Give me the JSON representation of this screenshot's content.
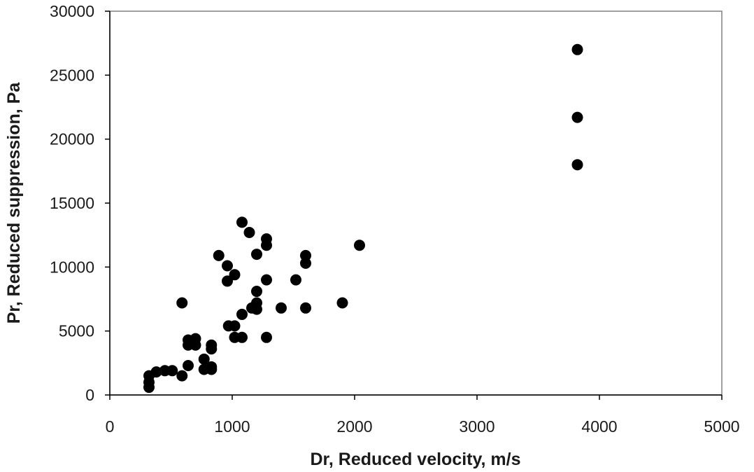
{
  "chart_data": {
    "type": "scatter",
    "title": "",
    "xlabel": "Dr, Reduced velocity, m/s",
    "ylabel": "Pr, Reduced suppression, Pa",
    "xlim": [
      0,
      5000
    ],
    "ylim": [
      0,
      30000
    ],
    "x_ticks": [
      "0",
      "1000",
      "2000",
      "3000",
      "4000",
      "5000"
    ],
    "y_ticks": [
      "0",
      "5000",
      "10000",
      "15000",
      "20000",
      "25000",
      "30000"
    ],
    "grid": false,
    "legend": "none",
    "point_color": "#000000",
    "series": [
      {
        "points": [
          [
            3820,
            27000
          ],
          [
            3820,
            21700
          ],
          [
            3820,
            18000
          ],
          [
            1080,
            13500
          ],
          [
            1140,
            12700
          ],
          [
            1280,
            12200
          ],
          [
            1280,
            11700
          ],
          [
            2040,
            11700
          ],
          [
            1200,
            11000
          ],
          [
            1600,
            10900
          ],
          [
            890,
            10900
          ],
          [
            1600,
            10300
          ],
          [
            960,
            10100
          ],
          [
            1020,
            9400
          ],
          [
            960,
            8900
          ],
          [
            1280,
            9000
          ],
          [
            1520,
            9000
          ],
          [
            1200,
            8100
          ],
          [
            1200,
            7200
          ],
          [
            1900,
            7200
          ],
          [
            590,
            7200
          ],
          [
            1200,
            6700
          ],
          [
            1160,
            6800
          ],
          [
            1400,
            6800
          ],
          [
            1600,
            6800
          ],
          [
            1080,
            6300
          ],
          [
            970,
            5400
          ],
          [
            1020,
            5400
          ],
          [
            1020,
            4500
          ],
          [
            1080,
            4500
          ],
          [
            1280,
            4500
          ],
          [
            640,
            4300
          ],
          [
            700,
            4400
          ],
          [
            640,
            3900
          ],
          [
            700,
            3900
          ],
          [
            830,
            3900
          ],
          [
            830,
            3600
          ],
          [
            770,
            2800
          ],
          [
            640,
            2300
          ],
          [
            830,
            2200
          ],
          [
            770,
            2000
          ],
          [
            830,
            2000
          ],
          [
            380,
            1800
          ],
          [
            450,
            1900
          ],
          [
            510,
            1900
          ],
          [
            590,
            1500
          ],
          [
            320,
            1500
          ],
          [
            320,
            1000
          ],
          [
            320,
            600
          ]
        ]
      }
    ]
  }
}
